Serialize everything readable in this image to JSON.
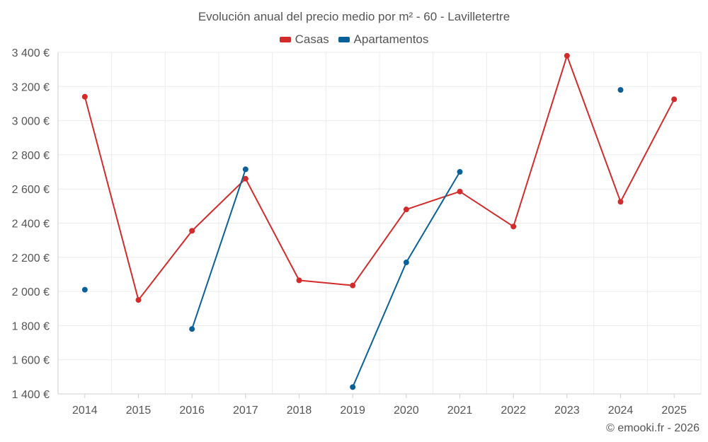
{
  "chart_data": {
    "type": "line",
    "title": "Evolución anual del precio medio por m² - 60 - Lavilletertre",
    "xlabel": "",
    "ylabel": "",
    "categories": [
      "2014",
      "2015",
      "2016",
      "2017",
      "2018",
      "2019",
      "2020",
      "2021",
      "2022",
      "2023",
      "2024",
      "2025"
    ],
    "ylim": [
      1400,
      3400
    ],
    "yticks": [
      1400,
      1600,
      1800,
      2000,
      2200,
      2400,
      2600,
      2800,
      3000,
      3200,
      3400
    ],
    "ytick_labels": [
      "1 400 €",
      "1 600 €",
      "1 800 €",
      "2 000 €",
      "2 200 €",
      "2 400 €",
      "2 600 €",
      "2 800 €",
      "3 000 €",
      "3 200 €",
      "3 400 €"
    ],
    "grid": true,
    "legend_position": "top-center",
    "series": [
      {
        "name": "Casas",
        "color": "#d32b2b",
        "values": [
          3140,
          1950,
          2355,
          2660,
          2065,
          2035,
          2480,
          2585,
          2380,
          3380,
          2525,
          3125
        ]
      },
      {
        "name": "Apartamentos",
        "color": "#0a6199",
        "values": [
          2010,
          null,
          1780,
          2715,
          null,
          1440,
          2170,
          2700,
          null,
          null,
          3180,
          null
        ]
      }
    ]
  },
  "credit": "© emooki.fr - 2026"
}
